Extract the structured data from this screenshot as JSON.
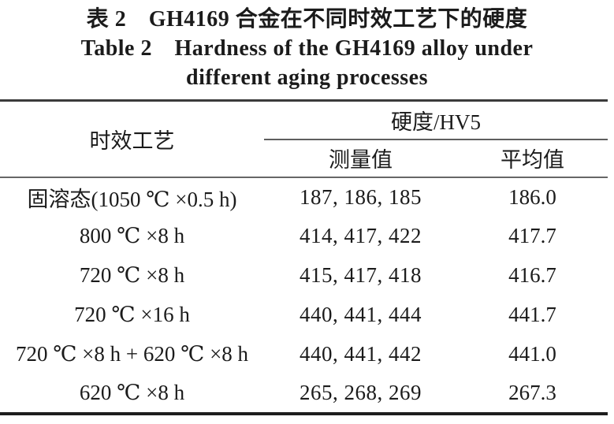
{
  "caption": {
    "zh": "表 2　GH4169 合金在不同时效工艺下的硬度",
    "en_line1": "Table 2　Hardness of the GH4169 alloy under",
    "en_line2": "different aging processes"
  },
  "table": {
    "header": {
      "process": "时效工艺",
      "hardness_group": "硬度/HV5",
      "measured": "测量值",
      "average": "平均值"
    },
    "rows": [
      {
        "process": "固溶态(1050 ℃ ×0.5 h)",
        "measured": "187, 186, 185",
        "average": "186.0"
      },
      {
        "process": "800 ℃ ×8 h",
        "measured": "414, 417, 422",
        "average": "417.7"
      },
      {
        "process": "720 ℃ ×8 h",
        "measured": "415, 417, 418",
        "average": "416.7"
      },
      {
        "process": "720 ℃ ×16 h",
        "measured": "440, 441, 444",
        "average": "441.7"
      },
      {
        "process": "720 ℃ ×8 h + 620 ℃ ×8 h",
        "measured": "440, 441, 442",
        "average": "441.0"
      },
      {
        "process": "620 ℃ ×8 h",
        "measured": "265, 268, 269",
        "average": "267.3"
      }
    ]
  },
  "colors": {
    "background": "#ffffff",
    "text": "#1b1b1b",
    "rule_top": "#3b3b3b",
    "rule_group_separator": "#5e5e5e",
    "rule_header_bottom": "#666666",
    "rule_bottom": "#1d1d1d"
  }
}
